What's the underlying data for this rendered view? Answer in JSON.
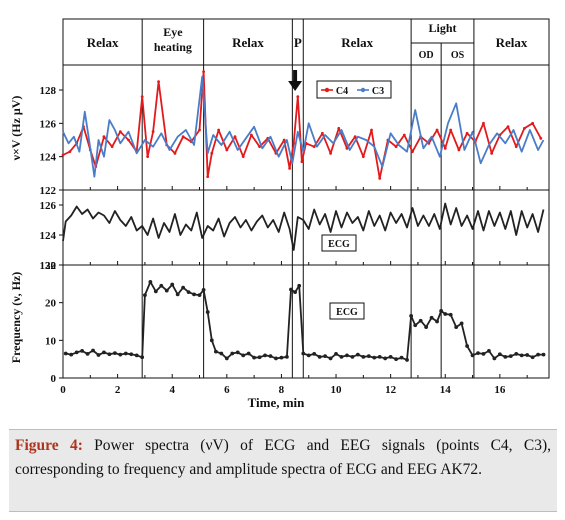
{
  "chart_data": [
    {
      "type": "line",
      "panel": "eeg-amplitude",
      "ylabel": "ν×V (Hz μV)",
      "ylim": [
        122,
        129.5
      ],
      "yticks": [
        122,
        124,
        126,
        128
      ],
      "xlim": [
        0,
        17.8
      ],
      "legend": {
        "placement": "top-right",
        "entries": [
          "C4",
          "C3"
        ]
      },
      "series": [
        {
          "name": "C4",
          "color": "#e31a1c",
          "marker": "dot",
          "x": [
            0,
            0.25,
            0.5,
            0.75,
            1,
            1.2,
            1.5,
            1.8,
            2.1,
            2.4,
            2.7,
            2.9,
            3.1,
            3.3,
            3.5,
            3.8,
            4.1,
            4.4,
            4.7,
            5.0,
            5.15,
            5.3,
            5.45,
            5.7,
            6.0,
            6.3,
            6.6,
            6.9,
            7.2,
            7.5,
            7.8,
            8.1,
            8.3,
            8.45,
            8.6,
            8.75,
            8.9,
            9.2,
            9.5,
            9.8,
            10.1,
            10.4,
            10.7,
            11.0,
            11.3,
            11.6,
            11.9,
            12.2,
            12.5,
            12.8,
            13.1,
            13.4,
            13.7,
            14.0,
            14.2,
            14.5,
            14.8,
            15.1,
            15.4,
            15.7,
            16.0,
            16.3,
            16.6,
            16.9,
            17.2,
            17.5
          ],
          "y": [
            124.1,
            124.3,
            124.8,
            125.8,
            124.4,
            123.4,
            125.2,
            124.6,
            125.5,
            125.0,
            124.3,
            127.6,
            124.0,
            125.5,
            128.5,
            124.7,
            124.2,
            125.2,
            124.9,
            125.6,
            129.1,
            122.8,
            124.2,
            125.6,
            124.4,
            125.2,
            124.0,
            125.3,
            124.6,
            125.1,
            124.2,
            125.0,
            123.3,
            124.8,
            127.6,
            123.7,
            124.8,
            124.6,
            125.4,
            124.2,
            125.7,
            124.5,
            125.2,
            124.0,
            125.6,
            122.7,
            125.0,
            124.6,
            125.3,
            124.3,
            125.2,
            124.8,
            125.6,
            124.5,
            125.6,
            124.4,
            125.4,
            124.9,
            126.0,
            124.2,
            125.3,
            125.8,
            124.6,
            125.7,
            126.0,
            125.1
          ]
        },
        {
          "name": "C3",
          "color": "#4a7dc8",
          "marker": "none",
          "x": [
            0,
            0.2,
            0.4,
            0.6,
            0.8,
            1.0,
            1.15,
            1.3,
            1.5,
            1.7,
            1.9,
            2.1,
            2.4,
            2.7,
            3.0,
            3.3,
            3.6,
            3.9,
            4.2,
            4.5,
            4.8,
            5.1,
            5.3,
            5.5,
            5.8,
            6.1,
            6.4,
            6.7,
            7.0,
            7.3,
            7.6,
            7.9,
            8.2,
            8.4,
            8.6,
            8.8,
            9.0,
            9.3,
            9.6,
            9.9,
            10.2,
            10.5,
            10.8,
            11.1,
            11.4,
            11.7,
            12.0,
            12.3,
            12.6,
            12.9,
            13.2,
            13.5,
            13.8,
            14.1,
            14.4,
            14.7,
            15.0,
            15.3,
            15.6,
            15.9,
            16.2,
            16.5,
            16.8,
            17.1,
            17.4,
            17.6
          ],
          "y": [
            125.5,
            124.8,
            125.2,
            124.3,
            126.7,
            124.5,
            122.8,
            125.0,
            124.0,
            126.2,
            125.6,
            124.8,
            125.5,
            124.2,
            125.0,
            124.6,
            125.4,
            124.4,
            125.2,
            125.6,
            124.7,
            128.8,
            124.2,
            125.3,
            124.7,
            125.5,
            124.4,
            125.1,
            125.8,
            124.5,
            125.2,
            124.0,
            125.0,
            123.6,
            125.5,
            124.3,
            126.0,
            124.6,
            125.3,
            124.8,
            125.6,
            124.4,
            125.2,
            125.0,
            124.6,
            123.4,
            125.4,
            124.7,
            124.3,
            126.8,
            124.5,
            125.2,
            124.0,
            126.0,
            127.2,
            124.4,
            125.5,
            123.6,
            124.7,
            125.4,
            124.8,
            125.6,
            124.3,
            125.6,
            124.4,
            125.0
          ]
        }
      ]
    },
    {
      "type": "line",
      "panel": "ecg-amplitude",
      "ylim": [
        122,
        127
      ],
      "yticks": [
        122,
        124,
        126
      ],
      "xlim": [
        0,
        17.8
      ],
      "annotation": "ECG",
      "series": [
        {
          "color": "#222222",
          "marker": "none",
          "x": [
            0,
            0.1,
            0.3,
            0.5,
            0.7,
            0.9,
            1.1,
            1.3,
            1.5,
            1.7,
            1.9,
            2.1,
            2.3,
            2.5,
            2.7,
            2.9,
            3.1,
            3.3,
            3.5,
            3.7,
            3.9,
            4.1,
            4.3,
            4.5,
            4.7,
            4.9,
            5.1,
            5.3,
            5.5,
            5.7,
            5.9,
            6.1,
            6.3,
            6.5,
            6.7,
            6.9,
            7.1,
            7.3,
            7.5,
            7.7,
            7.9,
            8.1,
            8.3,
            8.45,
            8.6,
            8.8,
            9.0,
            9.2,
            9.4,
            9.6,
            9.8,
            10.0,
            10.2,
            10.4,
            10.6,
            10.8,
            11.0,
            11.2,
            11.4,
            11.6,
            11.8,
            12.0,
            12.2,
            12.4,
            12.6,
            12.8,
            13.0,
            13.2,
            13.4,
            13.6,
            13.8,
            14.0,
            14.2,
            14.4,
            14.6,
            14.8,
            15.0,
            15.2,
            15.4,
            15.6,
            15.8,
            16.0,
            16.2,
            16.4,
            16.6,
            16.8,
            17.0,
            17.2,
            17.4,
            17.6
          ],
          "y": [
            123.6,
            124.9,
            125.3,
            125.9,
            125.4,
            125.7,
            125.1,
            125.5,
            125.3,
            124.8,
            125.6,
            125.0,
            124.6,
            125.2,
            124.3,
            124.6,
            124.0,
            125.1,
            123.8,
            124.8,
            124.2,
            125.4,
            124.0,
            124.7,
            124.3,
            125.5,
            123.8,
            124.6,
            124.3,
            125.1,
            123.9,
            124.8,
            125.2,
            124.5,
            125.0,
            124.3,
            124.9,
            125.3,
            124.5,
            125.0,
            124.2,
            125.5,
            124.4,
            123.0,
            125.2,
            125.0,
            124.4,
            125.7,
            124.7,
            125.4,
            124.2,
            125.6,
            124.5,
            125.5,
            124.8,
            125.2,
            124.3,
            125.6,
            124.6,
            125.3,
            124.3,
            125.5,
            124.8,
            125.4,
            124.5,
            125.8,
            124.6,
            125.3,
            124.6,
            125.4,
            124.4,
            126.1,
            124.7,
            125.8,
            124.6,
            125.3,
            124.4,
            125.6,
            124.3,
            125.6,
            124.6,
            125.5,
            124.4,
            125.6,
            124.0,
            125.6,
            124.5,
            125.4,
            124.2,
            125.7
          ]
        }
      ]
    },
    {
      "type": "line",
      "panel": "ecg-frequency",
      "ylabel": "Frequency (ν, Hz)",
      "xlabel": "Time, min",
      "ylim": [
        0,
        30
      ],
      "yticks": [
        0,
        10,
        20,
        30
      ],
      "xlim": [
        0,
        17.8
      ],
      "xticks": [
        0,
        2,
        4,
        6,
        8,
        10,
        12,
        14,
        16
      ],
      "annotation": "ECG",
      "series": [
        {
          "color": "#222222",
          "marker": "dot",
          "x": [
            0.1,
            0.3,
            0.5,
            0.7,
            0.9,
            1.1,
            1.3,
            1.5,
            1.7,
            1.9,
            2.1,
            2.3,
            2.5,
            2.7,
            2.9,
            3.0,
            3.2,
            3.4,
            3.6,
            3.8,
            4.0,
            4.2,
            4.4,
            4.6,
            4.8,
            5.0,
            5.15,
            5.3,
            5.45,
            5.6,
            5.8,
            6.0,
            6.2,
            6.4,
            6.6,
            6.8,
            7.0,
            7.2,
            7.4,
            7.6,
            7.8,
            8.0,
            8.2,
            8.35,
            8.5,
            8.65,
            8.8,
            9.0,
            9.2,
            9.4,
            9.6,
            9.8,
            10.0,
            10.2,
            10.4,
            10.6,
            10.8,
            11.0,
            11.2,
            11.4,
            11.6,
            11.8,
            12.0,
            12.2,
            12.4,
            12.6,
            12.75,
            12.9,
            13.1,
            13.3,
            13.5,
            13.7,
            13.85,
            14.0,
            14.2,
            14.4,
            14.6,
            14.8,
            15.0,
            15.2,
            15.4,
            15.6,
            15.8,
            16.0,
            16.2,
            16.4,
            16.6,
            16.8,
            17.0,
            17.2,
            17.4,
            17.6
          ],
          "y": [
            6.5,
            6.2,
            6.8,
            7.2,
            6.4,
            7.3,
            6.1,
            6.8,
            6.3,
            6.6,
            6.2,
            6.5,
            6.3,
            6.0,
            5.5,
            22,
            25.5,
            23,
            24.5,
            23.2,
            24.8,
            22.2,
            24,
            22.8,
            22.2,
            22.0,
            23.4,
            17.5,
            10,
            7,
            6.5,
            5.2,
            6.5,
            6.8,
            6.0,
            6.5,
            5.4,
            5.5,
            6.0,
            5.8,
            5.2,
            5.4,
            5.6,
            23.5,
            22.8,
            24.5,
            6.5,
            6.0,
            6.4,
            5.6,
            5.8,
            5.2,
            6.4,
            5.6,
            6.0,
            5.6,
            6.2,
            5.6,
            5.8,
            5.4,
            5.6,
            5.2,
            5.6,
            5.0,
            5.4,
            4.8,
            16.5,
            14.0,
            15.2,
            13.5,
            16.0,
            15.0,
            17.8,
            17.0,
            16.8,
            13.5,
            14.5,
            8.5,
            6.0,
            6.6,
            6.4,
            7.2,
            5.2,
            6.3,
            5.6,
            5.8,
            6.4,
            6.0,
            6.1,
            5.5,
            6.2,
            6.2
          ]
        }
      ]
    }
  ],
  "phases": [
    {
      "label": "Relax",
      "start": 0,
      "end": 2.9
    },
    {
      "label": "Eye\nheating",
      "start": 2.9,
      "end": 5.15
    },
    {
      "label": "Relax",
      "start": 5.15,
      "end": 8.4
    },
    {
      "label": "P",
      "start": 8.4,
      "end": 8.8
    },
    {
      "label": "Relax",
      "start": 8.8,
      "end": 12.75
    },
    {
      "label": "Light",
      "start": 12.75,
      "end": 15.05,
      "sub": [
        {
          "label": "OD",
          "start": 12.75,
          "end": 13.85
        },
        {
          "label": "OS",
          "start": 13.85,
          "end": 15.05
        }
      ]
    },
    {
      "label": "Relax",
      "start": 15.05,
      "end": 17.8
    }
  ],
  "marker_arrow_x": 8.5,
  "caption": {
    "label": "Figure 4:",
    "text": " Power spectra (νV) of ECG and EEG signals (points C4, C3), corresponding to frequency and amplitude spectra of ECG and EEG AK72."
  }
}
